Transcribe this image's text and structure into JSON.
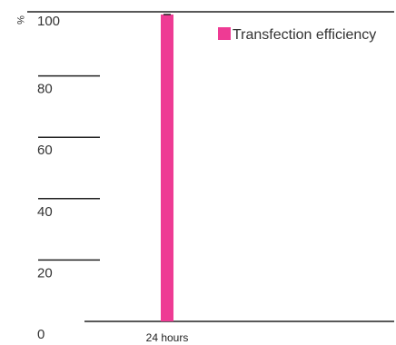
{
  "chart_data": {
    "type": "bar",
    "categories": [
      "24 hours"
    ],
    "series": [
      {
        "name": "Transfection efficiency",
        "values": [
          100
        ],
        "color": "#ee3b94"
      }
    ],
    "ylabel": "%",
    "ylim": [
      0,
      100
    ],
    "yticks": [
      "0",
      "20",
      "40",
      "60",
      "80",
      "100"
    ],
    "grid": false,
    "legend": "top-right"
  }
}
